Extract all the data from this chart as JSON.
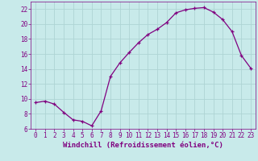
{
  "x": [
    0,
    1,
    2,
    3,
    4,
    5,
    6,
    7,
    8,
    9,
    10,
    11,
    12,
    13,
    14,
    15,
    16,
    17,
    18,
    19,
    20,
    21,
    22,
    23
  ],
  "y": [
    9.5,
    9.7,
    9.3,
    8.2,
    7.2,
    7.0,
    6.4,
    8.4,
    13.0,
    14.8,
    16.2,
    17.5,
    18.6,
    19.3,
    20.2,
    21.5,
    21.9,
    22.1,
    22.2,
    21.6,
    20.6,
    19.0,
    15.8,
    14.1
  ],
  "line_color": "#800080",
  "marker": "+",
  "bg_color": "#c8eaea",
  "grid_color": "#aed4d4",
  "xlabel": "Windchill (Refroidissement éolien,°C)",
  "xlabel_color": "#800080",
  "tick_color": "#800080",
  "ylim": [
    6,
    23
  ],
  "xlim": [
    -0.5,
    23.5
  ],
  "yticks": [
    6,
    8,
    10,
    12,
    14,
    16,
    18,
    20,
    22
  ],
  "xticks": [
    0,
    1,
    2,
    3,
    4,
    5,
    6,
    7,
    8,
    9,
    10,
    11,
    12,
    13,
    14,
    15,
    16,
    17,
    18,
    19,
    20,
    21,
    22,
    23
  ],
  "tick_fontsize": 5.5,
  "xlabel_fontsize": 6.5,
  "marker_size": 3,
  "linewidth": 0.9
}
